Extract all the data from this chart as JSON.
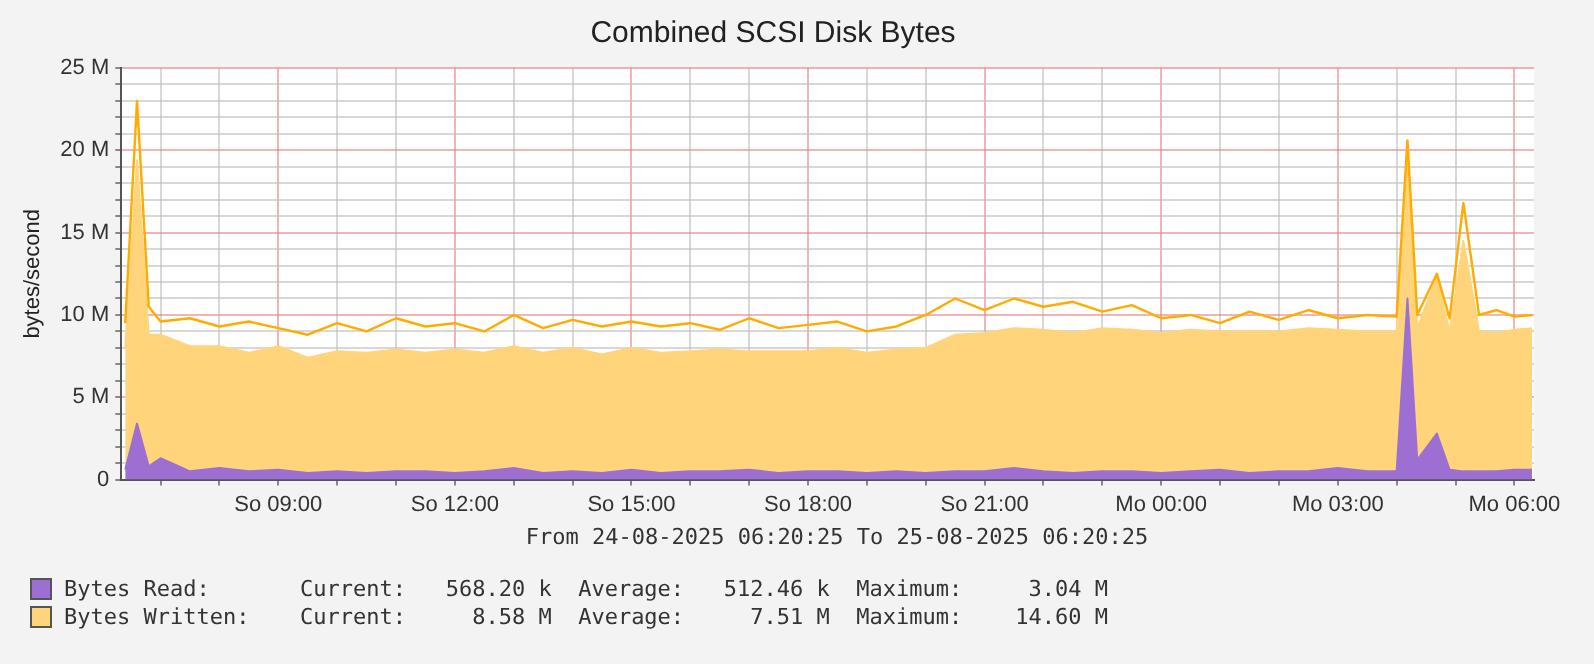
{
  "chart_data": {
    "type": "area",
    "title": "Combined SCSI Disk Bytes",
    "subtitle": "From 24-08-2025 06:20:25 To 25-08-2025 06:20:25",
    "ylabel": "bytes/second",
    "stacked": true,
    "grid": true,
    "legend": "bottom",
    "marker": "none",
    "x": [
      "2025-08-24T06:24",
      "2025-08-24T06:36",
      "2025-08-24T06:48",
      "2025-08-24T07:00",
      "2025-08-24T07:30",
      "2025-08-24T08:00",
      "2025-08-24T08:30",
      "2025-08-24T09:00",
      "2025-08-24T09:30",
      "2025-08-24T10:00",
      "2025-08-24T10:30",
      "2025-08-24T11:00",
      "2025-08-24T11:30",
      "2025-08-24T12:00",
      "2025-08-24T12:30",
      "2025-08-24T13:00",
      "2025-08-24T13:30",
      "2025-08-24T14:00",
      "2025-08-24T14:30",
      "2025-08-24T15:00",
      "2025-08-24T15:30",
      "2025-08-24T16:00",
      "2025-08-24T16:30",
      "2025-08-24T17:00",
      "2025-08-24T17:30",
      "2025-08-24T18:00",
      "2025-08-24T18:30",
      "2025-08-24T19:00",
      "2025-08-24T19:30",
      "2025-08-24T20:00",
      "2025-08-24T20:30",
      "2025-08-24T21:00",
      "2025-08-24T21:30",
      "2025-08-24T22:00",
      "2025-08-24T22:30",
      "2025-08-24T23:00",
      "2025-08-24T23:30",
      "2025-08-25T00:00",
      "2025-08-25T00:30",
      "2025-08-25T01:00",
      "2025-08-25T01:30",
      "2025-08-25T02:00",
      "2025-08-25T02:30",
      "2025-08-25T03:00",
      "2025-08-25T03:30",
      "2025-08-25T04:00",
      "2025-08-25T04:11",
      "2025-08-25T04:21",
      "2025-08-25T04:41",
      "2025-08-25T04:54",
      "2025-08-25T05:08",
      "2025-08-25T05:24",
      "2025-08-25T05:42",
      "2025-08-25T06:00",
      "2025-08-25T06:18"
    ],
    "xlim": [
      "2025-08-24T06:20",
      "2025-08-25T06:20"
    ],
    "xticks": [
      {
        "value": "2025-08-24T07:00",
        "label": null
      },
      {
        "value": "2025-08-24T08:00",
        "label": null
      },
      {
        "value": "2025-08-24T09:00",
        "label": "So 09:00"
      },
      {
        "value": "2025-08-24T10:00",
        "label": null
      },
      {
        "value": "2025-08-24T11:00",
        "label": null
      },
      {
        "value": "2025-08-24T12:00",
        "label": "So 12:00"
      },
      {
        "value": "2025-08-24T13:00",
        "label": null
      },
      {
        "value": "2025-08-24T14:00",
        "label": null
      },
      {
        "value": "2025-08-24T15:00",
        "label": "So 15:00"
      },
      {
        "value": "2025-08-24T16:00",
        "label": null
      },
      {
        "value": "2025-08-24T17:00",
        "label": null
      },
      {
        "value": "2025-08-24T18:00",
        "label": "So 18:00"
      },
      {
        "value": "2025-08-24T19:00",
        "label": null
      },
      {
        "value": "2025-08-24T20:00",
        "label": null
      },
      {
        "value": "2025-08-24T21:00",
        "label": "So 21:00"
      },
      {
        "value": "2025-08-24T22:00",
        "label": null
      },
      {
        "value": "2025-08-24T23:00",
        "label": null
      },
      {
        "value": "2025-08-25T00:00",
        "label": "Mo 00:00"
      },
      {
        "value": "2025-08-25T01:00",
        "label": null
      },
      {
        "value": "2025-08-25T02:00",
        "label": null
      },
      {
        "value": "2025-08-25T03:00",
        "label": "Mo 03:00"
      },
      {
        "value": "2025-08-25T04:00",
        "label": null
      },
      {
        "value": "2025-08-25T05:00",
        "label": null
      },
      {
        "value": "2025-08-25T06:00",
        "label": "Mo 06:00"
      }
    ],
    "ylim": [
      0,
      25
    ],
    "yticks": [
      {
        "value": 0,
        "label": "0"
      },
      {
        "value": 1,
        "label": null
      },
      {
        "value": 2,
        "label": null
      },
      {
        "value": 3,
        "label": null
      },
      {
        "value": 4,
        "label": null
      },
      {
        "value": 5,
        "label": "5 M"
      },
      {
        "value": 6,
        "label": null
      },
      {
        "value": 7,
        "label": null
      },
      {
        "value": 8,
        "label": null
      },
      {
        "value": 9,
        "label": null
      },
      {
        "value": 10,
        "label": "10 M"
      },
      {
        "value": 11,
        "label": null
      },
      {
        "value": 12,
        "label": null
      },
      {
        "value": 13,
        "label": null
      },
      {
        "value": 14,
        "label": null
      },
      {
        "value": 15,
        "label": "15 M"
      },
      {
        "value": 16,
        "label": null
      },
      {
        "value": 17,
        "label": null
      },
      {
        "value": 18,
        "label": null
      },
      {
        "value": 19,
        "label": null
      },
      {
        "value": 20,
        "label": "20 M"
      },
      {
        "value": 21,
        "label": null
      },
      {
        "value": 22,
        "label": null
      },
      {
        "value": 23,
        "label": null
      },
      {
        "value": 24,
        "label": null
      },
      {
        "value": 25,
        "label": "25 M"
      }
    ],
    "series": [
      {
        "name": "Bytes Read:",
        "color": "#9e6fd3",
        "values": [
          0.6,
          3.4,
          0.8,
          1.3,
          0.5,
          0.7,
          0.5,
          0.6,
          0.4,
          0.5,
          0.4,
          0.5,
          0.5,
          0.4,
          0.5,
          0.7,
          0.4,
          0.5,
          0.4,
          0.6,
          0.4,
          0.5,
          0.5,
          0.6,
          0.4,
          0.5,
          0.5,
          0.4,
          0.5,
          0.4,
          0.5,
          0.5,
          0.7,
          0.5,
          0.4,
          0.5,
          0.5,
          0.4,
          0.5,
          0.6,
          0.4,
          0.5,
          0.5,
          0.7,
          0.5,
          0.5,
          11,
          1.2,
          2.8,
          0.6,
          0.5,
          0.5,
          0.5,
          0.6,
          0.6
        ]
      },
      {
        "name": "Bytes Written:",
        "color": "#ffd47a",
        "values": [
          7.4,
          16,
          8,
          7.5,
          7.6,
          7.4,
          7.2,
          7.5,
          7.0,
          7.3,
          7.3,
          7.4,
          7.2,
          7.5,
          7.2,
          7.4,
          7.3,
          7.5,
          7.2,
          7.4,
          7.3,
          7.3,
          7.4,
          7.2,
          7.4,
          7.3,
          7.5,
          7.3,
          7.4,
          7.6,
          8.3,
          8.4,
          8.5,
          8.6,
          8.5,
          8.7,
          8.6,
          8.5,
          8.6,
          8.4,
          8.6,
          8.5,
          8.7,
          8.4,
          8.5,
          8.5,
          9,
          8,
          9.5,
          8.4,
          14,
          8.5,
          8.4,
          8.5,
          8.6
        ]
      },
      {
        "type": "line",
        "color": "#ffab00",
        "values": [
          9.5,
          23,
          10.5,
          9.6,
          9.8,
          9.3,
          9.6,
          9.2,
          8.8,
          9.5,
          9.0,
          9.8,
          9.3,
          9.5,
          9.0,
          10.0,
          9.2,
          9.7,
          9.3,
          9.6,
          9.3,
          9.5,
          9.1,
          9.8,
          9.2,
          9.4,
          9.6,
          9.0,
          9.3,
          10.0,
          11.0,
          10.3,
          11.0,
          10.5,
          10.8,
          10.2,
          10.6,
          9.8,
          10.0,
          9.5,
          10.2,
          9.7,
          10.3,
          9.8,
          10.0,
          9.9,
          20.6,
          10.0,
          12.5,
          9.8,
          16.8,
          10.0,
          10.3,
          9.9,
          10.0
        ]
      }
    ],
    "annotations": [
      "Current:   568.20 k  Average:   512.46 k  Maximum:     3.04 M",
      "Current:     8.58 M  Average:     7.51 M  Maximum:    14.60 M"
    ]
  }
}
